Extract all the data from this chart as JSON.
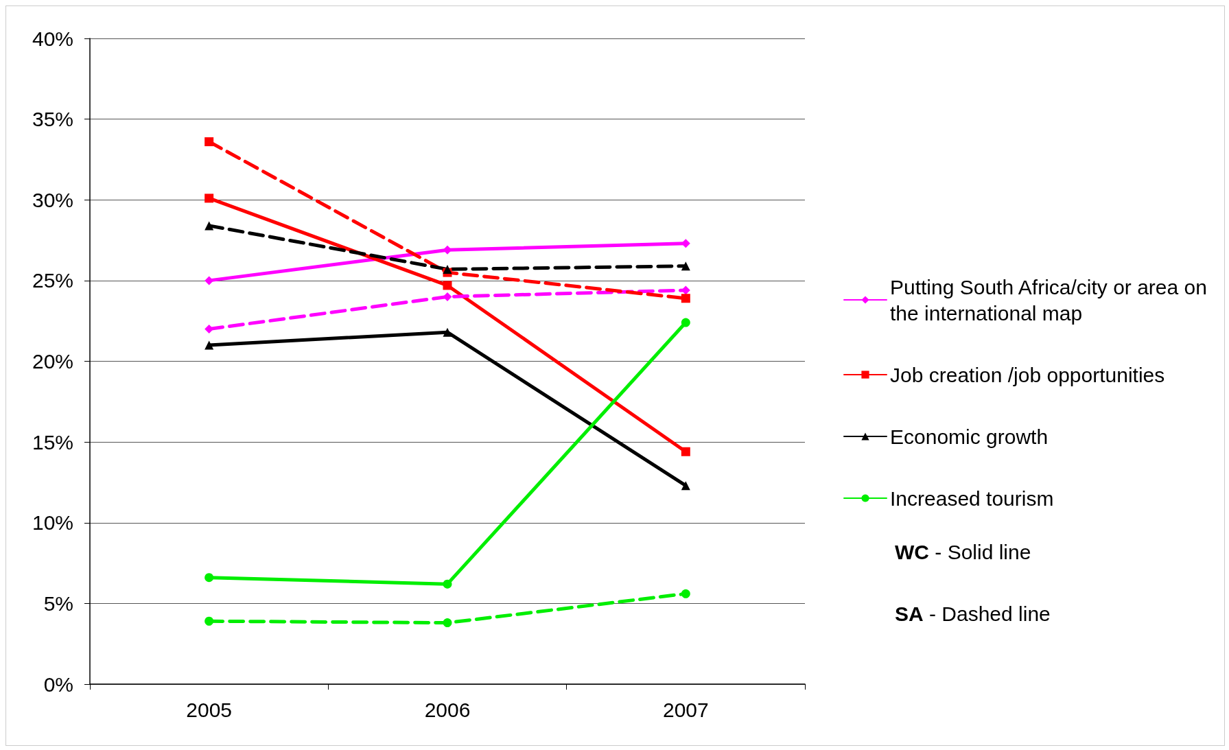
{
  "chart_data": {
    "type": "line",
    "categories": [
      "2005",
      "2006",
      "2007"
    ],
    "series": [
      {
        "name": "Putting South Africa/city or area on the international map",
        "color": "#ff00ff",
        "marker": "diamond",
        "line_style": "solid",
        "values": [
          25.0,
          26.9,
          27.3
        ]
      },
      {
        "name": "Job creation /job opportunities",
        "color": "#ff0000",
        "marker": "square",
        "line_style": "solid",
        "values": [
          30.1,
          24.7,
          14.4
        ]
      },
      {
        "name": "Economic growth",
        "color": "#000000",
        "marker": "triangle",
        "line_style": "solid",
        "values": [
          21.0,
          21.8,
          12.3
        ]
      },
      {
        "name": "Increased tourism",
        "color": "#00ee00",
        "marker": "circle",
        "line_style": "solid",
        "values": [
          6.6,
          6.2,
          22.4
        ]
      },
      {
        "color": "#ff00ff",
        "marker": "diamond",
        "line_style": "dashed",
        "values": [
          22.0,
          24.0,
          24.4
        ]
      },
      {
        "color": "#ff0000",
        "marker": "square",
        "line_style": "dashed",
        "values": [
          33.6,
          25.5,
          23.9
        ]
      },
      {
        "color": "#000000",
        "marker": "triangle",
        "line_style": "dashed",
        "values": [
          28.4,
          25.7,
          25.9
        ]
      },
      {
        "color": "#00ee00",
        "marker": "circle",
        "line_style": "dashed",
        "values": [
          3.9,
          3.8,
          5.6
        ]
      }
    ],
    "ylim": [
      0,
      40
    ],
    "yticks": [
      {
        "value": 0,
        "label": "0%"
      },
      {
        "value": 5,
        "label": "5%"
      },
      {
        "value": 10,
        "label": "10%"
      },
      {
        "value": 15,
        "label": "15%"
      },
      {
        "value": 20,
        "label": "20%"
      },
      {
        "value": 25,
        "label": "25%"
      },
      {
        "value": 30,
        "label": "30%"
      },
      {
        "value": 35,
        "label": "35%"
      },
      {
        "value": 40,
        "label": "40%"
      }
    ],
    "grid": "y",
    "legend": "right",
    "annotations": [
      "WC - Solid line",
      "SA - Dashed line"
    ]
  }
}
